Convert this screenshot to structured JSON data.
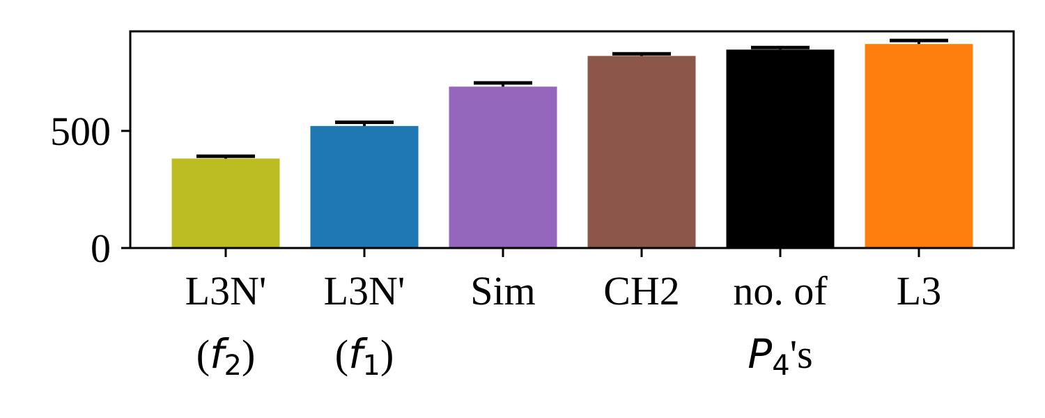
{
  "chart_data": {
    "type": "bar",
    "categories": [
      {
        "line1": "L3N'",
        "line2": {
          "open": "(",
          "var": "f",
          "sub": "2",
          "close": ")"
        }
      },
      {
        "line1": "L3N'",
        "line2": {
          "open": "(",
          "var": "f",
          "sub": "1",
          "close": ")"
        }
      },
      {
        "line1": "Sim",
        "line2": null
      },
      {
        "line1": "CH2",
        "line2": null
      },
      {
        "line1": "no. of",
        "line2": {
          "open": "",
          "var": "P",
          "sub": "4",
          "close": "'s"
        }
      },
      {
        "line1": "L3",
        "line2": null
      }
    ],
    "values": [
      382,
      521,
      689,
      820,
      847,
      871
    ],
    "errors": [
      10,
      16,
      16,
      9,
      9,
      15
    ],
    "colors": [
      "#bcbd22",
      "#1f77b4",
      "#9467bd",
      "#8c564b",
      "#000000",
      "#ff7f0e"
    ],
    "error_color": "#000000",
    "yticks": [
      0,
      500
    ],
    "ytick_labels": [
      "0",
      "500"
    ],
    "ylim": [
      0,
      925
    ],
    "title": "",
    "xlabel": "",
    "ylabel": "",
    "grid": false,
    "legend": false
  }
}
